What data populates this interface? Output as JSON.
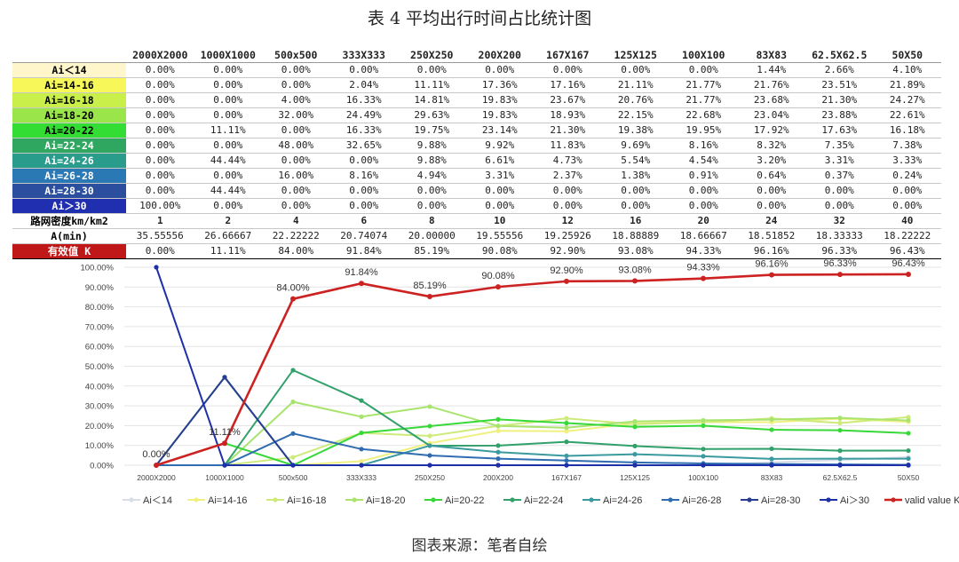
{
  "title": "表 4  平均出行时间占比统计图",
  "source": "图表来源：笔者自绘",
  "colors": {
    "row_bg": [
      "#fff6cc",
      "#f7f75a",
      "#c9f04a",
      "#9ae64a",
      "#33dd33",
      "#2fa760",
      "#299c8c",
      "#2a78b4",
      "#2b4f9e",
      "#1f2fb0"
    ],
    "row_fg": [
      "#000",
      "#000",
      "#000",
      "#000",
      "#000",
      "#fff",
      "#fff",
      "#fff",
      "#fff",
      "#fff"
    ],
    "series": [
      "#d8dee8",
      "#f0f080",
      "#cdea7a",
      "#a8e46e",
      "#38d838",
      "#32a06a",
      "#3a9aa0",
      "#2f6cb0",
      "#2a3e90",
      "#1e30a8"
    ],
    "k_line": "#cc2222",
    "k_header_bg": "#c01818"
  },
  "table": {
    "columns": [
      "2000X2000",
      "1000X1000",
      "500x500",
      "333X333",
      "250X250",
      "200X200",
      "167X167",
      "125X125",
      "100X100",
      "83X83",
      "62.5X62.5",
      "50X50"
    ],
    "rows": [
      {
        "label": "Ai＜14",
        "values": [
          "0.00%",
          "0.00%",
          "0.00%",
          "0.00%",
          "0.00%",
          "0.00%",
          "0.00%",
          "0.00%",
          "0.00%",
          "1.44%",
          "2.66%",
          "4.10%"
        ]
      },
      {
        "label": "Ai=14-16",
        "values": [
          "0.00%",
          "0.00%",
          "0.00%",
          "2.04%",
          "11.11%",
          "17.36%",
          "17.16%",
          "21.11%",
          "21.77%",
          "21.76%",
          "23.51%",
          "21.89%"
        ]
      },
      {
        "label": "Ai=16-18",
        "values": [
          "0.00%",
          "0.00%",
          "4.00%",
          "16.33%",
          "14.81%",
          "19.83%",
          "23.67%",
          "20.76%",
          "21.77%",
          "23.68%",
          "21.30%",
          "24.27%"
        ]
      },
      {
        "label": "Ai=18-20",
        "values": [
          "0.00%",
          "0.00%",
          "32.00%",
          "24.49%",
          "29.63%",
          "19.83%",
          "18.93%",
          "22.15%",
          "22.68%",
          "23.04%",
          "23.88%",
          "22.61%"
        ]
      },
      {
        "label": "Ai=20-22",
        "values": [
          "0.00%",
          "11.11%",
          "0.00%",
          "16.33%",
          "19.75%",
          "23.14%",
          "21.30%",
          "19.38%",
          "19.95%",
          "17.92%",
          "17.63%",
          "16.18%"
        ]
      },
      {
        "label": "Ai=22-24",
        "values": [
          "0.00%",
          "0.00%",
          "48.00%",
          "32.65%",
          "9.88%",
          "9.92%",
          "11.83%",
          "9.69%",
          "8.16%",
          "8.32%",
          "7.35%",
          "7.38%"
        ]
      },
      {
        "label": "Ai=24-26",
        "values": [
          "0.00%",
          "44.44%",
          "0.00%",
          "0.00%",
          "9.88%",
          "6.61%",
          "4.73%",
          "5.54%",
          "4.54%",
          "3.20%",
          "3.31%",
          "3.33%"
        ]
      },
      {
        "label": "Ai=26-28",
        "values": [
          "0.00%",
          "0.00%",
          "16.00%",
          "8.16%",
          "4.94%",
          "3.31%",
          "2.37%",
          "1.38%",
          "0.91%",
          "0.64%",
          "0.37%",
          "0.24%"
        ]
      },
      {
        "label": "Ai=28-30",
        "values": [
          "0.00%",
          "44.44%",
          "0.00%",
          "0.00%",
          "0.00%",
          "0.00%",
          "0.00%",
          "0.00%",
          "0.00%",
          "0.00%",
          "0.00%",
          "0.00%"
        ]
      },
      {
        "label": "Ai＞30",
        "values": [
          "100.00%",
          "0.00%",
          "0.00%",
          "0.00%",
          "0.00%",
          "0.00%",
          "0.00%",
          "0.00%",
          "0.00%",
          "0.00%",
          "0.00%",
          "0.00%"
        ]
      }
    ],
    "density": {
      "label": "路网密度km/km2",
      "values": [
        "1",
        "2",
        "4",
        "6",
        "8",
        "10",
        "12",
        "16",
        "20",
        "24",
        "32",
        "40"
      ]
    },
    "amin": {
      "label": "A(min)",
      "values": [
        "35.55556",
        "26.66667",
        "22.22222",
        "20.74074",
        "20.00000",
        "19.55556",
        "19.25926",
        "18.88889",
        "18.66667",
        "18.51852",
        "18.33333",
        "18.22222"
      ]
    },
    "k": {
      "label": "有效值 K",
      "values": [
        "0.00%",
        "11.11%",
        "84.00%",
        "91.84%",
        "85.19%",
        "90.08%",
        "92.90%",
        "93.08%",
        "94.33%",
        "96.16%",
        "96.33%",
        "96.43%"
      ]
    }
  },
  "chart_data": {
    "type": "line",
    "categories": [
      "2000X2000",
      "1000X1000",
      "500x500",
      "333X333",
      "250X250",
      "200X200",
      "167X167",
      "125X125",
      "100X100",
      "83X83",
      "62.5X62.5",
      "50X50"
    ],
    "ylim": [
      0,
      100
    ],
    "yticks": [
      "0.00%",
      "10.00%",
      "20.00%",
      "30.00%",
      "40.00%",
      "50.00%",
      "60.00%",
      "70.00%",
      "80.00%",
      "90.00%",
      "100.00%"
    ],
    "series": [
      {
        "name": "Ai＜14",
        "values": [
          0,
          0,
          0,
          0,
          0,
          0,
          0,
          0,
          0,
          1.44,
          2.66,
          4.1
        ]
      },
      {
        "name": "Ai=14-16",
        "values": [
          0,
          0,
          0,
          2.04,
          11.11,
          17.36,
          17.16,
          21.11,
          21.77,
          21.76,
          23.51,
          21.89
        ]
      },
      {
        "name": "Ai=16-18",
        "values": [
          0,
          0,
          4.0,
          16.33,
          14.81,
          19.83,
          23.67,
          20.76,
          21.77,
          23.68,
          21.3,
          24.27
        ]
      },
      {
        "name": "Ai=18-20",
        "values": [
          0,
          0,
          32.0,
          24.49,
          29.63,
          19.83,
          18.93,
          22.15,
          22.68,
          23.04,
          23.88,
          22.61
        ]
      },
      {
        "name": "Ai=20-22",
        "values": [
          0,
          11.11,
          0,
          16.33,
          19.75,
          23.14,
          21.3,
          19.38,
          19.95,
          17.92,
          17.63,
          16.18
        ]
      },
      {
        "name": "Ai=22-24",
        "values": [
          0,
          0,
          48.0,
          32.65,
          9.88,
          9.92,
          11.83,
          9.69,
          8.16,
          8.32,
          7.35,
          7.38
        ]
      },
      {
        "name": "Ai=24-26",
        "values": [
          0,
          44.44,
          0,
          0,
          9.88,
          6.61,
          4.73,
          5.54,
          4.54,
          3.2,
          3.31,
          3.33
        ]
      },
      {
        "name": "Ai=26-28",
        "values": [
          0,
          0,
          16.0,
          8.16,
          4.94,
          3.31,
          2.37,
          1.38,
          0.91,
          0.64,
          0.37,
          0.24
        ]
      },
      {
        "name": "Ai=28-30",
        "values": [
          0,
          44.44,
          0,
          0,
          0,
          0,
          0,
          0,
          0,
          0,
          0,
          0
        ]
      },
      {
        "name": "Ai＞30",
        "values": [
          100,
          0,
          0,
          0,
          0,
          0,
          0,
          0,
          0,
          0,
          0,
          0
        ]
      },
      {
        "name": "valid value K",
        "values": [
          0,
          11.11,
          84.0,
          91.84,
          85.19,
          90.08,
          92.9,
          93.08,
          94.33,
          96.16,
          96.33,
          96.43
        ]
      }
    ],
    "k_labels": [
      "0.00%",
      "11.11%",
      "84.00%",
      "91.84%",
      "85.19%",
      "90.08%",
      "92.90%",
      "93.08%",
      "94.33%",
      "96.16%",
      "96.33%",
      "96.43%"
    ],
    "legend_position": "bottom"
  }
}
